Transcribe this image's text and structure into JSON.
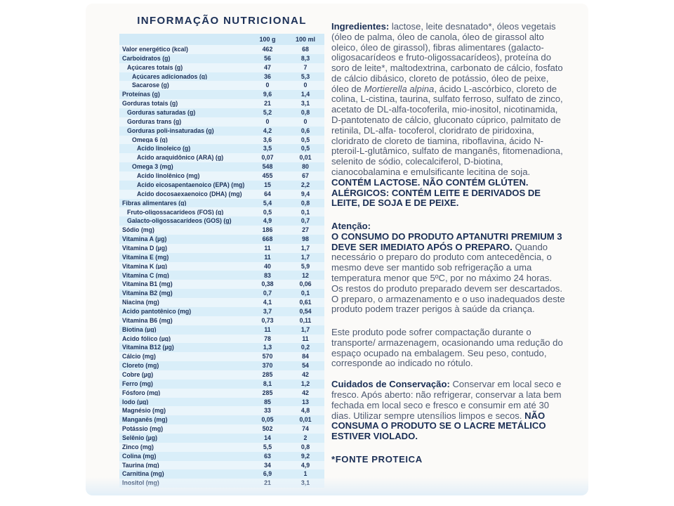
{
  "page": {
    "title": "INFORMAÇÃO NUTRICIONAL"
  },
  "colors": {
    "text_navy": "#1c3057",
    "text_body": "#4d5970",
    "table_header_blue": "#d2eaf7",
    "row_light_blue": "#eaf5fb",
    "row_blue": "#d9eef9",
    "panel_background": "#fbfaf8"
  },
  "table": {
    "col_headers": [
      "100 g",
      "100 ml"
    ],
    "rows": [
      {
        "label": "Valor energético (kcal)",
        "indent": 0,
        "g": "462",
        "ml": "68"
      },
      {
        "label": "Carboidratos (g)",
        "indent": 0,
        "g": "56",
        "ml": "8,3"
      },
      {
        "label": "Açúcares totais (g)",
        "indent": 1,
        "g": "47",
        "ml": "7"
      },
      {
        "label": "Açúcares adicionados (g)",
        "indent": 2,
        "g": "36",
        "ml": "5,3"
      },
      {
        "label": "Sacarose (g)",
        "indent": 2,
        "g": "0",
        "ml": "0"
      },
      {
        "label": "Proteínas (g)",
        "indent": 0,
        "g": "9,6",
        "ml": "1,4"
      },
      {
        "label": "Gorduras totais (g)",
        "indent": 0,
        "g": "21",
        "ml": "3,1"
      },
      {
        "label": "Gorduras saturadas (g)",
        "indent": 1,
        "g": "5,2",
        "ml": "0,8"
      },
      {
        "label": "Gorduras trans (g)",
        "indent": 1,
        "g": "0",
        "ml": "0"
      },
      {
        "label": "Gorduras poli-insaturadas (g)",
        "indent": 1,
        "g": "4,2",
        "ml": "0,6"
      },
      {
        "label": "Ômega 6 (g)",
        "indent": 2,
        "g": "3,6",
        "ml": "0,5"
      },
      {
        "label": "Ácido linoleico (g)",
        "indent": 3,
        "g": "3,5",
        "ml": "0,5"
      },
      {
        "label": "Ácido araquidônico (ARA) (g)",
        "indent": 3,
        "g": "0,07",
        "ml": "0,01"
      },
      {
        "label": "Ômega 3 (mg)",
        "indent": 2,
        "g": "548",
        "ml": "80"
      },
      {
        "label": "Ácido linolênico (mg)",
        "indent": 3,
        "g": "455",
        "ml": "67"
      },
      {
        "label": "Ácido eicosapentaenoico (EPA) (mg)",
        "indent": 3,
        "g": "15",
        "ml": "2,2"
      },
      {
        "label": "Ácido docosaexaenoico (DHA) (mg)",
        "indent": 3,
        "g": "64",
        "ml": "9,4"
      },
      {
        "label": "Fibras alimentares (g)",
        "indent": 0,
        "g": "5,4",
        "ml": "0,8"
      },
      {
        "label": "Fruto-oligossacarídeos (FOS) (g)",
        "indent": 1,
        "g": "0,5",
        "ml": "0,1"
      },
      {
        "label": "Galacto-oligossacarídeos (GOS) (g)",
        "indent": 1,
        "g": "4,9",
        "ml": "0,7"
      },
      {
        "label": "Sódio (mg)",
        "indent": 0,
        "g": "186",
        "ml": "27"
      },
      {
        "label": "Vitamina A (µg)",
        "indent": 0,
        "g": "668",
        "ml": "98"
      },
      {
        "label": "Vitamina D (µg)",
        "indent": 0,
        "g": "11",
        "ml": "1,7"
      },
      {
        "label": "Vitamina E (mg)",
        "indent": 0,
        "g": "11",
        "ml": "1,7"
      },
      {
        "label": "Vitamina K (µg)",
        "indent": 0,
        "g": "40",
        "ml": "5,9"
      },
      {
        "label": "Vitamina C (mg)",
        "indent": 0,
        "g": "83",
        "ml": "12"
      },
      {
        "label": "Vitamina B1 (mg)",
        "indent": 0,
        "g": "0,38",
        "ml": "0,06"
      },
      {
        "label": "Vitamina B2 (mg)",
        "indent": 0,
        "g": "0,7",
        "ml": "0,1"
      },
      {
        "label": "Niacina (mg)",
        "indent": 0,
        "g": "4,1",
        "ml": "0,61"
      },
      {
        "label": "Ácido pantotênico (mg)",
        "indent": 0,
        "g": "3,7",
        "ml": "0,54"
      },
      {
        "label": "Vitamina B6 (mg)",
        "indent": 0,
        "g": "0,73",
        "ml": "0,11"
      },
      {
        "label": "Biotina (µg)",
        "indent": 0,
        "g": "11",
        "ml": "1,7"
      },
      {
        "label": "Ácido fólico (µg)",
        "indent": 0,
        "g": "78",
        "ml": "11"
      },
      {
        "label": "Vitamina B12 (µg)",
        "indent": 0,
        "g": "1,3",
        "ml": "0,2"
      },
      {
        "label": "Cálcio (mg)",
        "indent": 0,
        "g": "570",
        "ml": "84"
      },
      {
        "label": "Cloreto (mg)",
        "indent": 0,
        "g": "370",
        "ml": "54"
      },
      {
        "label": "Cobre (µg)",
        "indent": 0,
        "g": "285",
        "ml": "42"
      },
      {
        "label": "Ferro (mg)",
        "indent": 0,
        "g": "8,1",
        "ml": "1,2"
      },
      {
        "label": "Fósforo (mg)",
        "indent": 0,
        "g": "285",
        "ml": "42"
      },
      {
        "label": "Iodo (µg)",
        "indent": 0,
        "g": "85",
        "ml": "13"
      },
      {
        "label": "Magnésio (mg)",
        "indent": 0,
        "g": "33",
        "ml": "4,8"
      },
      {
        "label": "Manganês (mg)",
        "indent": 0,
        "g": "0,05",
        "ml": "0,01"
      },
      {
        "label": "Potássio (mg)",
        "indent": 0,
        "g": "502",
        "ml": "74"
      },
      {
        "label": "Selênio (µg)",
        "indent": 0,
        "g": "14",
        "ml": "2"
      },
      {
        "label": "Zinco (mg)",
        "indent": 0,
        "g": "5,5",
        "ml": "0,8"
      },
      {
        "label": "Colina (mg)",
        "indent": 0,
        "g": "63",
        "ml": "9,2"
      },
      {
        "label": "Taurina (mg)",
        "indent": 0,
        "g": "34",
        "ml": "4,9"
      },
      {
        "label": "Carnitina (mg)",
        "indent": 0,
        "g": "6,9",
        "ml": "1"
      },
      {
        "label": "Inositol (mg)",
        "indent": 0,
        "g": "21",
        "ml": "3,1"
      }
    ]
  },
  "right_text": {
    "paragraphs": [
      {
        "name": "ingredients-paragraph",
        "gap": "none",
        "segments": [
          {
            "t": "Ingredientes: ",
            "b": true
          },
          {
            "t": "lactose, leite desnatado*, óleos vegetais (óleo de palma, óleo de canola, óleo de girassol alto oleico, óleo de girassol), fibras alimentares (galacto-oligosacarídeos e fruto-oligossacarídeos), proteína do soro de leite*, maltodextrina, carbonato de cálcio, fosfato de cálcio dibásico, cloreto de potássio, óleo de peixe, óleo de "
          },
          {
            "t": "Mortierella alpina",
            "i": true
          },
          {
            "t": ", ácido L-ascórbico,  cloreto de colina, L-cistina, taurina, sulfato ferroso, sulfato de zinco, acetato de DL-alfa-tocoferila, mio-inositol, nicotinamida, D-pantotenato de cálcio, gluconato cúprico, palmitato de retinila, DL-alfa- tocoferol, cloridrato de piridoxina, cloridrato de cloreto de tiamina, riboflavina, ácido N-pteroil-L-glutâmico, sulfato de manganês, fitomenadiona, selenito de sódio, colecalciferol, D-biotina, cianocobalamina e emulsificante lecitina de soja. "
          },
          {
            "t": "CONTÉM LACTOSE. NÃO CONTÉM GLÚTEN. ALÉRGICOS: CONTÉM LEITE E DERIVADOS DE LEITE, DE SOJA E DE PEIXE.",
            "b": true
          }
        ]
      },
      {
        "name": "attention-heading",
        "gap": "lg",
        "segments": [
          {
            "t": "Atenção:",
            "b": true
          }
        ]
      },
      {
        "name": "attention-paragraph",
        "gap": "none",
        "segments": [
          {
            "t": "O CONSUMO DO PRODUTO APTANUTRI PREMIUM 3 DEVE SER IMEDIATO APÓS O PREPARO. ",
            "b": true
          },
          {
            "t": "Quando necessário o preparo do produto com antecedência, o mesmo deve ser mantido sob refrigeração a uma temperatura menor que 5ºC, por no máximo 24 horas."
          }
        ]
      },
      {
        "name": "leftovers-paragraph",
        "gap": "none",
        "segments": [
          {
            "t": "Os restos do produto preparado devem ser descartados. O preparo, o armazenamento e o uso inadequados deste produto podem trazer perigos à saúde da criança."
          }
        ]
      },
      {
        "name": "compaction-paragraph",
        "gap": "lg",
        "segments": [
          {
            "t": "Este produto pode sofrer compactação durante o transporte/ armazenagem, ocasionando uma redução do espaço ocupado na embalagem. Seu peso, contudo, corresponde ao indicado no rótulo."
          }
        ]
      },
      {
        "name": "conservation-paragraph",
        "gap": "md",
        "segments": [
          {
            "t": "Cuidados de Conservação: ",
            "b": true
          },
          {
            "t": "Conservar em local seco e fresco. Após aberto: não refrigerar, conservar a lata bem fechada em local seco e fresco e consumir em até 30 dias. Utilizar sempre utensílios limpos e secos. "
          },
          {
            "t": "NÃO CONSUMA O PRODUTO SE O LACRE METÁLICO ESTIVER VIOLADO.",
            "b": true
          }
        ]
      },
      {
        "name": "protein-source-footnote",
        "gap": "lg",
        "footnote": true,
        "segments": [
          {
            "t": "*FONTE PROTEICA",
            "b": true
          }
        ]
      }
    ]
  }
}
